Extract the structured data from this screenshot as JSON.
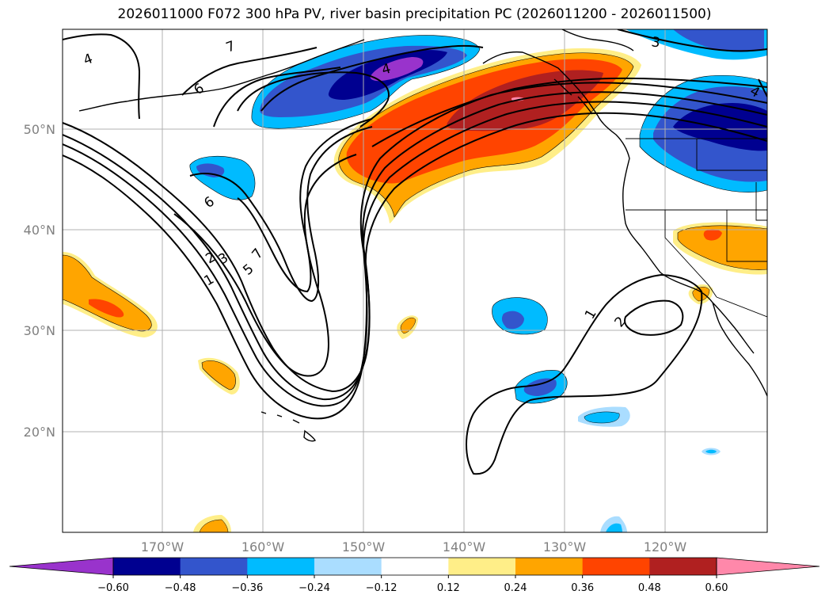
{
  "title": "2026011000 F072 300 hPa PV, river basin precipitation PC (2026011200 - 2026011500)",
  "lat_labels": [
    "50°N",
    "40°N",
    "30°N",
    "20°N"
  ],
  "lon_labels": [
    "170°W",
    "160°W",
    "150°W",
    "140°W",
    "130°W",
    "120°W"
  ],
  "colorbar": {
    "ticks": [
      "−0.60",
      "−0.48",
      "−0.36",
      "−0.24",
      "−0.12",
      "0.12",
      "0.24",
      "0.36",
      "0.48",
      "0.60"
    ],
    "colors": [
      "#9933cc",
      "#000090",
      "#3355cc",
      "#00bbff",
      "#aaddff",
      "#ffffff",
      "#ffee88",
      "#ffa500",
      "#ff4400",
      "#b02020",
      "#ff88aa"
    ],
    "extend": "both"
  },
  "contour_labels": [
    "1",
    "2",
    "3",
    "4",
    "5",
    "6",
    "7"
  ]
}
